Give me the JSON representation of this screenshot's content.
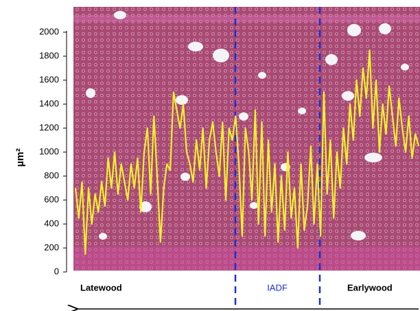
{
  "chart_data": {
    "type": "line",
    "y_label": "µm²",
    "ylim": [
      0,
      2000
    ],
    "yticks": [
      0,
      200,
      400,
      600,
      800,
      1000,
      1200,
      1400,
      1600,
      1800,
      2000
    ],
    "regions": [
      "Latewood",
      "IADF",
      "Earlywood"
    ],
    "series": [
      {
        "color": "#f2f22a",
        "values": [
          700,
          450,
          750,
          150,
          700,
          400,
          650,
          500,
          750,
          550,
          950,
          700,
          1000,
          650,
          900,
          750,
          600,
          900,
          700,
          950,
          500,
          1000,
          1200,
          650,
          1300,
          800,
          250,
          700,
          900,
          850,
          1500,
          1350,
          1200,
          1400,
          1000,
          900,
          750,
          1100,
          850,
          1200,
          700,
          1100,
          1250,
          1000,
          800,
          1250,
          600,
          1200,
          1100,
          1300,
          900,
          300,
          1200,
          1000,
          600,
          1350,
          400,
          1250,
          300,
          1100,
          500,
          900,
          250,
          800,
          350,
          1000,
          450,
          700,
          200,
          900,
          350,
          550,
          1050,
          400,
          900,
          300,
          1500,
          650,
          1100,
          450,
          1000,
          700,
          1200,
          900,
          1400,
          1100,
          1600,
          1300,
          1700,
          1450,
          1850,
          1200,
          1600,
          1000,
          1400,
          1150,
          1550,
          1300,
          1050,
          1450,
          1200,
          1000,
          1300,
          950,
          1150,
          1050
        ]
      }
    ]
  }
}
